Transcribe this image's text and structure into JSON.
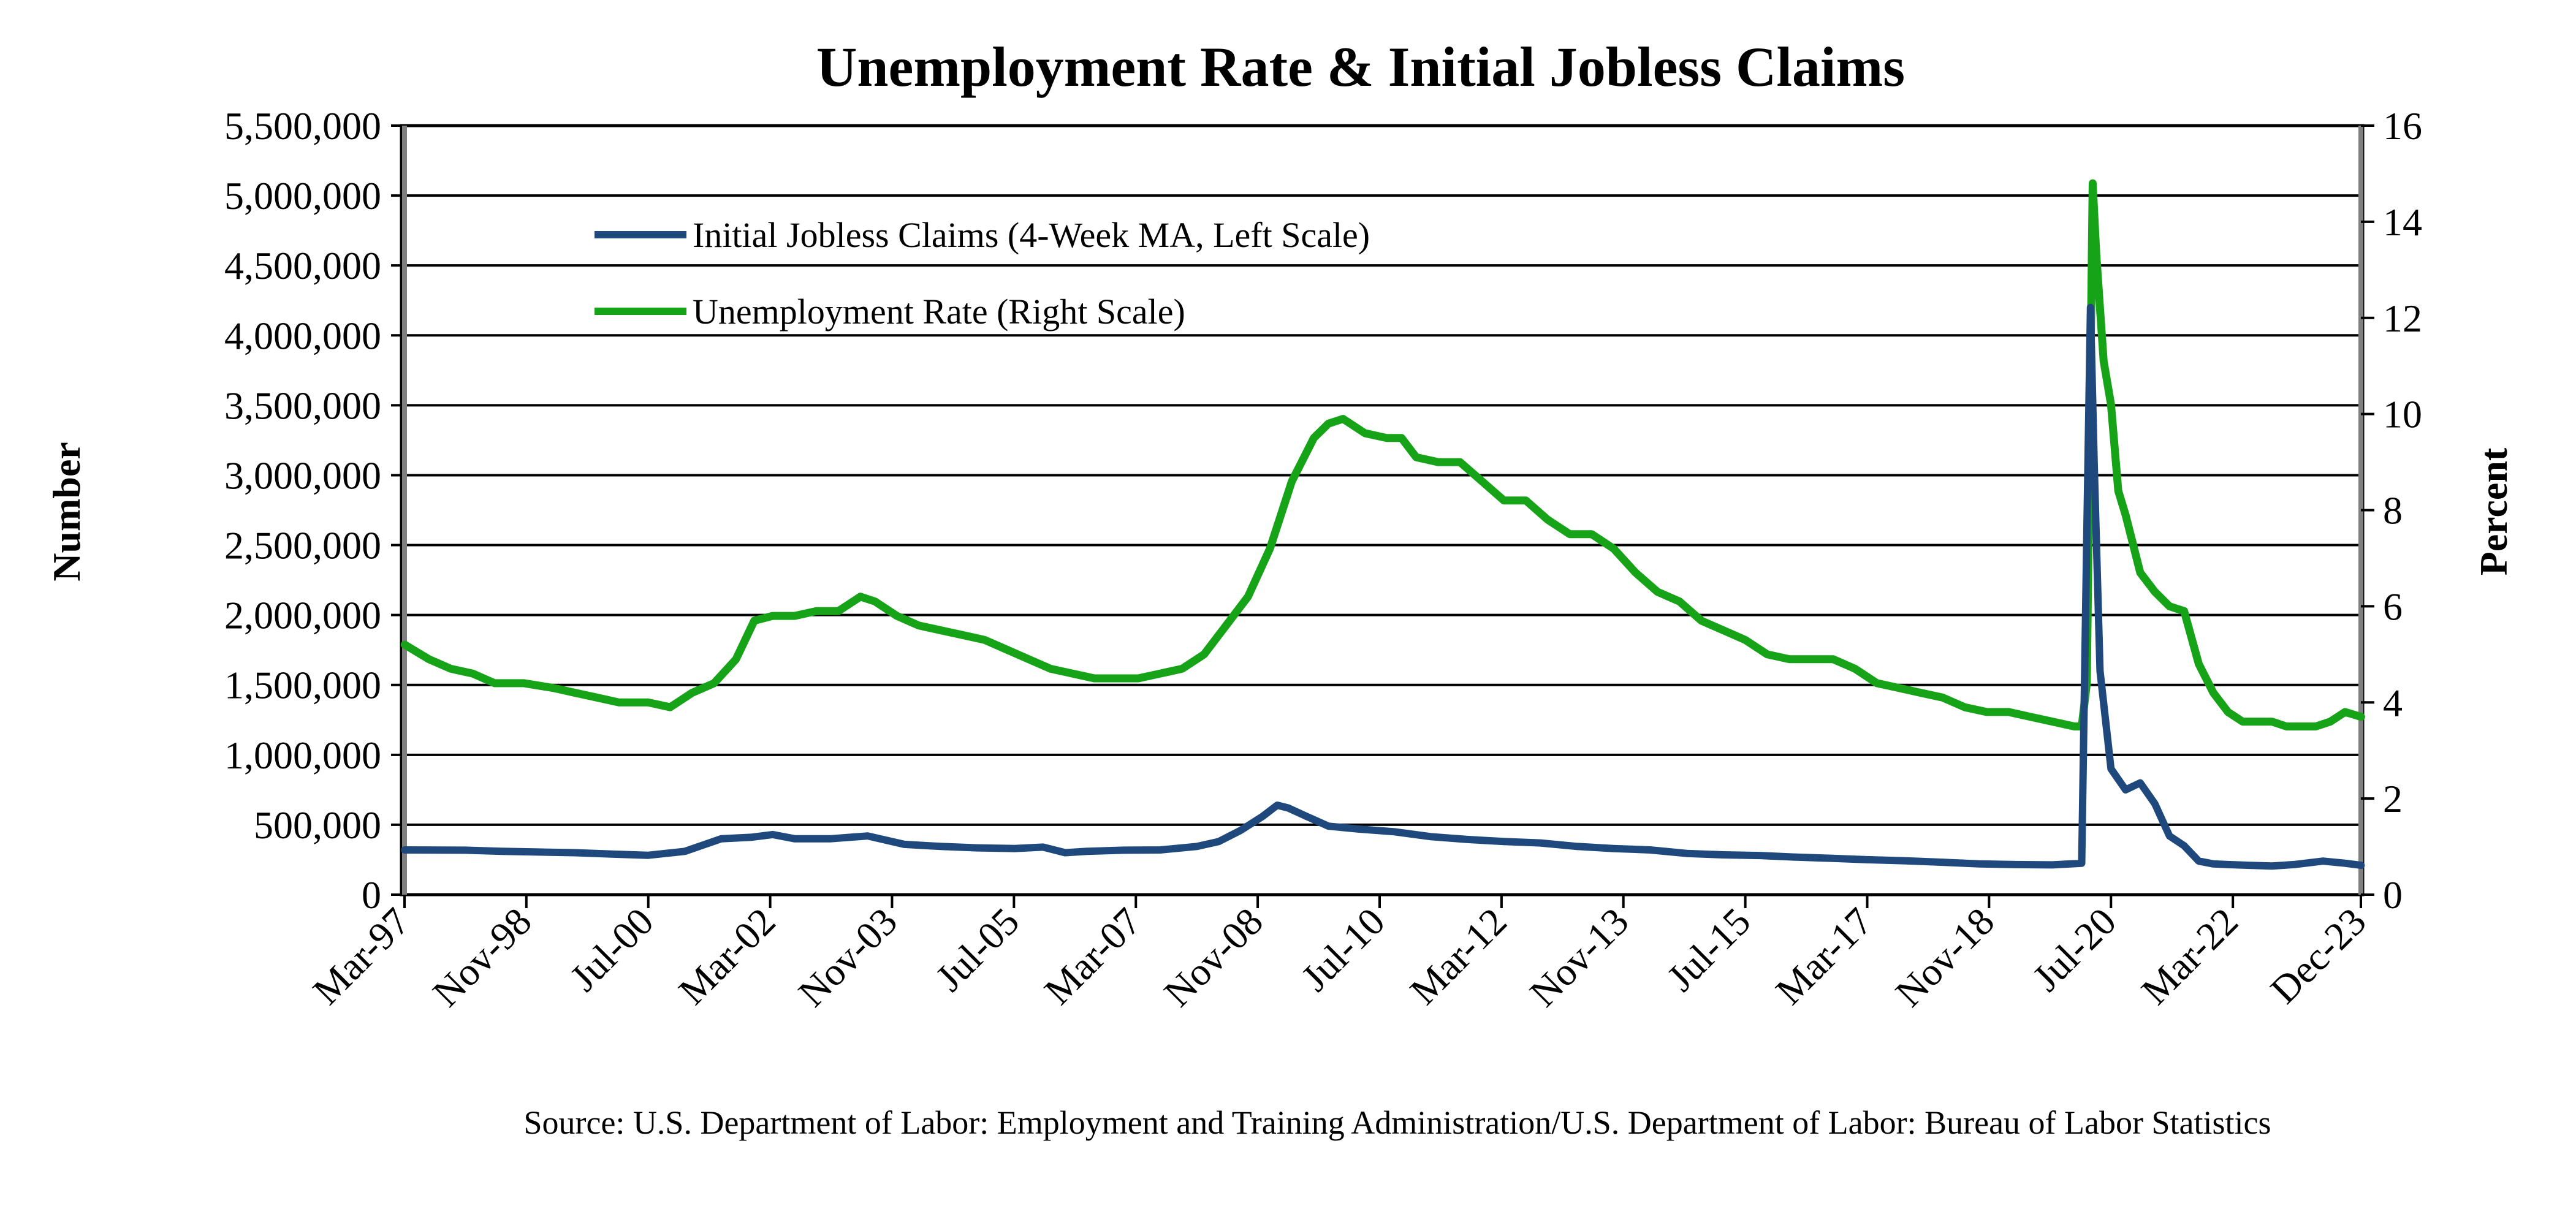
{
  "chart_data": {
    "type": "line",
    "title": "Unemployment Rate & Initial Jobless Claims",
    "ylabel_left": "Number",
    "ylabel_right": "Percent",
    "source": "Source: U.S. Department of Labor: Employment and Training Administration/U.S. Department of Labor: Bureau of Labor Statistics",
    "grid": true,
    "legend_position": "top-left",
    "xlim": [
      1997.167,
      2023.917
    ],
    "ylim_left": [
      0,
      5500000
    ],
    "ylim_right": [
      0,
      16
    ],
    "x_tick_labels": [
      "Mar-97",
      "Nov-98",
      "Jul-00",
      "Mar-02",
      "Nov-03",
      "Jul-05",
      "Mar-07",
      "Nov-08",
      "Jul-10",
      "Mar-12",
      "Nov-13",
      "Jul-15",
      "Mar-17",
      "Nov-18",
      "Jul-20",
      "Mar-22",
      "Dec-23"
    ],
    "x_tick_positions": [
      1997.167,
      1998.833,
      2000.5,
      2002.167,
      2003.833,
      2005.5,
      2007.167,
      2008.833,
      2010.5,
      2012.167,
      2013.833,
      2015.5,
      2017.167,
      2018.833,
      2020.5,
      2022.167,
      2023.917
    ],
    "y_left_ticks": [
      0,
      500000,
      1000000,
      1500000,
      2000000,
      2500000,
      3000000,
      3500000,
      4000000,
      4500000,
      5000000,
      5500000
    ],
    "y_left_tick_labels": [
      "0",
      "500,000",
      "1,000,000",
      "1,500,000",
      "2,000,000",
      "2,500,000",
      "3,000,000",
      "3,500,000",
      "4,000,000",
      "4,500,000",
      "5,000,000",
      "5,500,000"
    ],
    "y_right_ticks": [
      0,
      2,
      4,
      6,
      8,
      10,
      12,
      14,
      16
    ],
    "y_right_tick_labels": [
      "0",
      "2",
      "4",
      "6",
      "8",
      "10",
      "12",
      "14",
      "16"
    ],
    "series": [
      {
        "name": "Initial Jobless Claims (4-Week MA, Left Scale)",
        "axis": "left",
        "color": "#1F497D",
        "x": [
          1997.17,
          1998.0,
          1998.5,
          1999.0,
          1999.5,
          2000.0,
          2000.5,
          2001.0,
          2001.5,
          2001.9,
          2002.2,
          2002.5,
          2003.0,
          2003.5,
          2004.0,
          2004.5,
          2005.0,
          2005.5,
          2005.9,
          2006.2,
          2006.5,
          2007.0,
          2007.5,
          2008.0,
          2008.3,
          2008.6,
          2008.9,
          2009.1,
          2009.25,
          2009.5,
          2009.8,
          2010.2,
          2010.7,
          2011.2,
          2011.7,
          2012.2,
          2012.7,
          2013.2,
          2013.7,
          2014.2,
          2014.7,
          2015.2,
          2015.7,
          2016.2,
          2016.7,
          2017.2,
          2017.7,
          2018.2,
          2018.7,
          2019.2,
          2019.7,
          2020.1,
          2020.17,
          2020.22,
          2020.27,
          2020.35,
          2020.5,
          2020.7,
          2020.9,
          2021.1,
          2021.3,
          2021.5,
          2021.7,
          2021.9,
          2022.1,
          2022.4,
          2022.7,
          2023.0,
          2023.4,
          2023.7,
          2023.92
        ],
        "values": [
          320000,
          318000,
          310000,
          305000,
          300000,
          290000,
          282000,
          310000,
          400000,
          410000,
          430000,
          400000,
          400000,
          420000,
          360000,
          345000,
          335000,
          330000,
          340000,
          300000,
          310000,
          318000,
          320000,
          345000,
          380000,
          460000,
          560000,
          640000,
          620000,
          560000,
          490000,
          470000,
          450000,
          415000,
          395000,
          380000,
          370000,
          345000,
          330000,
          320000,
          295000,
          285000,
          280000,
          268000,
          260000,
          250000,
          242000,
          232000,
          220000,
          215000,
          213000,
          225000,
          2600000,
          4200000,
          3100000,
          1600000,
          900000,
          750000,
          800000,
          650000,
          420000,
          350000,
          240000,
          220000,
          215000,
          210000,
          205000,
          215000,
          240000,
          225000,
          210000
        ]
      },
      {
        "name": "Unemployment Rate (Right Scale)",
        "axis": "right",
        "color": "#17A317",
        "x": [
          1997.17,
          1997.5,
          1997.8,
          1998.1,
          1998.4,
          1998.8,
          1999.2,
          1999.5,
          1999.8,
          2000.1,
          2000.5,
          2000.8,
          2001.1,
          2001.4,
          2001.7,
          2001.95,
          2002.2,
          2002.5,
          2002.8,
          2003.1,
          2003.4,
          2003.6,
          2003.9,
          2004.2,
          2004.5,
          2004.8,
          2005.1,
          2005.4,
          2005.7,
          2006.0,
          2006.3,
          2006.6,
          2006.9,
          2007.2,
          2007.5,
          2007.8,
          2008.1,
          2008.4,
          2008.7,
          2009.0,
          2009.3,
          2009.6,
          2009.8,
          2010.0,
          2010.3,
          2010.6,
          2010.8,
          2011.0,
          2011.3,
          2011.6,
          2011.9,
          2012.2,
          2012.5,
          2012.8,
          2013.1,
          2013.4,
          2013.7,
          2014.0,
          2014.3,
          2014.6,
          2014.9,
          2015.2,
          2015.5,
          2015.8,
          2016.1,
          2016.4,
          2016.7,
          2017.0,
          2017.3,
          2017.6,
          2017.9,
          2018.2,
          2018.5,
          2018.8,
          2019.1,
          2019.4,
          2019.7,
          2020.0,
          2020.1,
          2020.17,
          2020.25,
          2020.3,
          2020.4,
          2020.5,
          2020.6,
          2020.7,
          2020.9,
          2021.1,
          2021.3,
          2021.5,
          2021.7,
          2021.9,
          2022.1,
          2022.3,
          2022.5,
          2022.7,
          2022.9,
          2023.1,
          2023.3,
          2023.5,
          2023.7,
          2023.92
        ],
        "values": [
          5.2,
          4.9,
          4.7,
          4.6,
          4.4,
          4.4,
          4.3,
          4.2,
          4.1,
          4.0,
          4.0,
          3.9,
          4.2,
          4.4,
          4.9,
          5.7,
          5.8,
          5.8,
          5.9,
          5.9,
          6.2,
          6.1,
          5.8,
          5.6,
          5.5,
          5.4,
          5.3,
          5.1,
          4.9,
          4.7,
          4.6,
          4.5,
          4.5,
          4.5,
          4.6,
          4.7,
          5.0,
          5.6,
          6.2,
          7.2,
          8.6,
          9.5,
          9.8,
          9.9,
          9.6,
          9.5,
          9.5,
          9.1,
          9.0,
          9.0,
          8.6,
          8.2,
          8.2,
          7.8,
          7.5,
          7.5,
          7.2,
          6.7,
          6.3,
          6.1,
          5.7,
          5.5,
          5.3,
          5.0,
          4.9,
          4.9,
          4.9,
          4.7,
          4.4,
          4.3,
          4.2,
          4.1,
          3.9,
          3.8,
          3.8,
          3.7,
          3.6,
          3.5,
          3.5,
          4.4,
          14.8,
          13.3,
          11.1,
          10.2,
          8.4,
          7.9,
          6.7,
          6.3,
          6.0,
          5.9,
          4.8,
          4.2,
          3.8,
          3.6,
          3.6,
          3.6,
          3.5,
          3.5,
          3.5,
          3.6,
          3.8,
          3.7
        ]
      }
    ]
  }
}
